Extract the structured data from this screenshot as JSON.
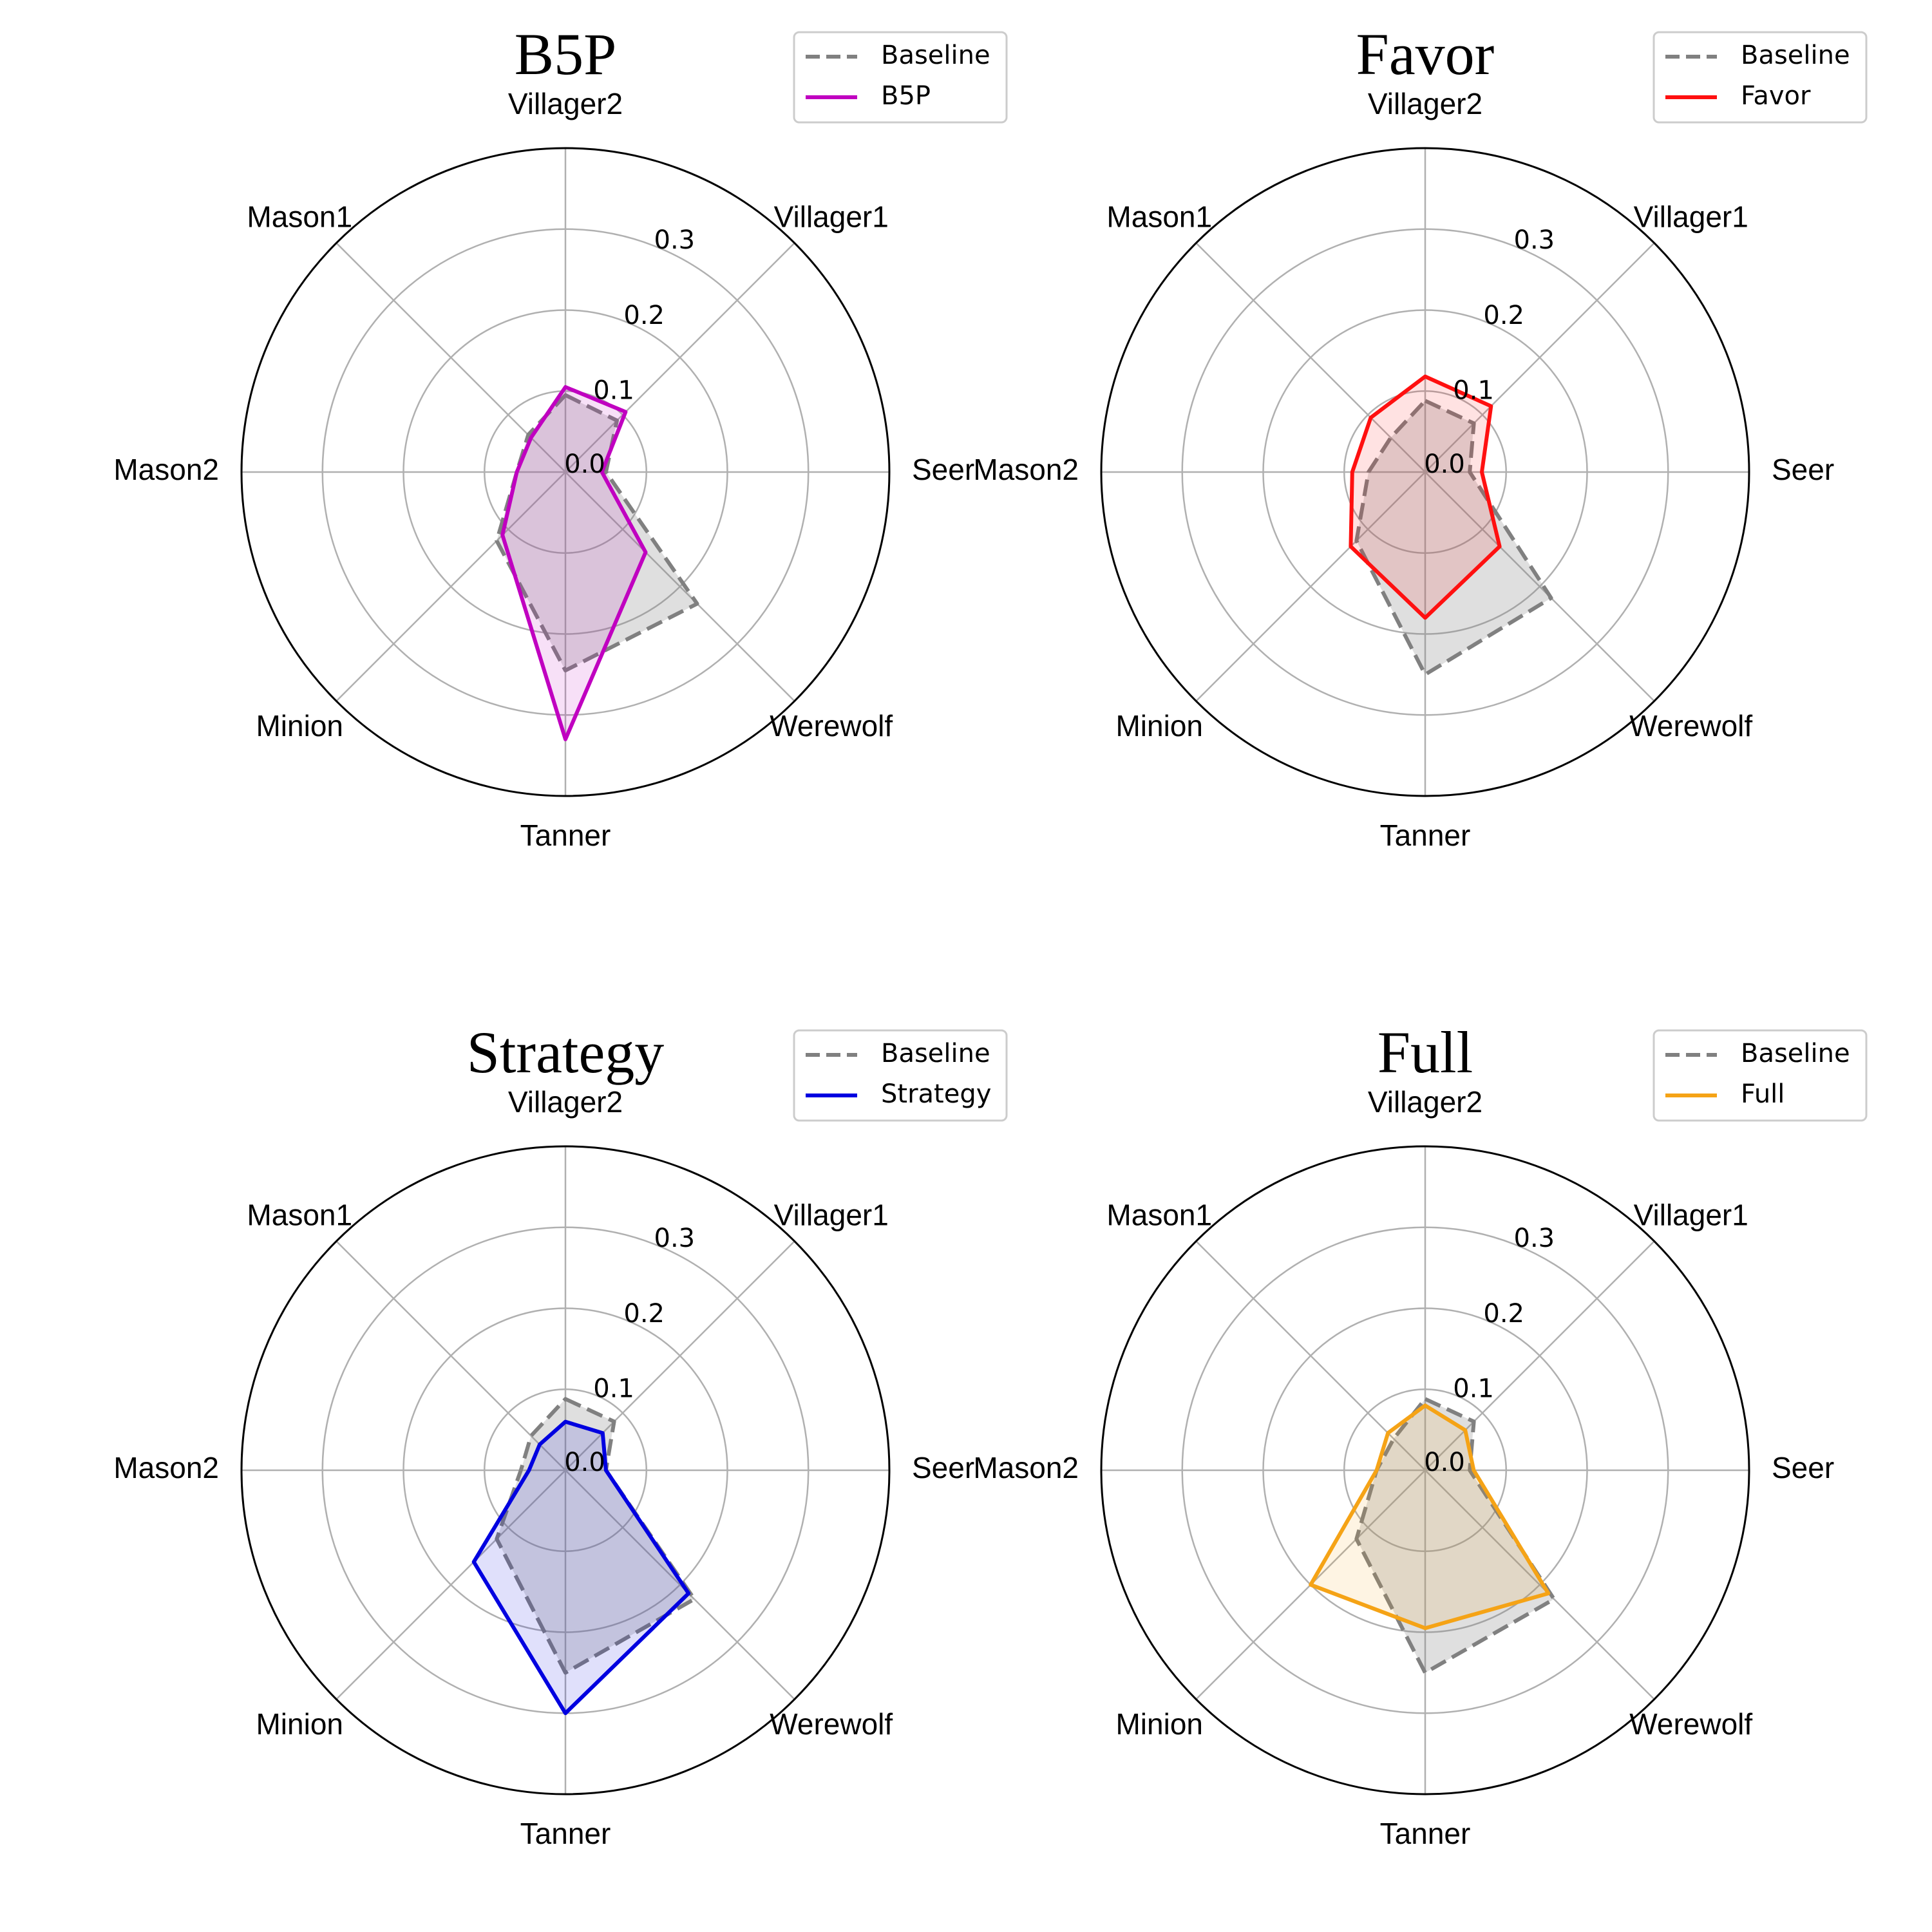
{
  "chart_data": [
    {
      "type": "radar",
      "title": "B5P",
      "axes": [
        "Villager2",
        "Villager1",
        "Seer",
        "Werewolf",
        "Tanner",
        "Minion",
        "Mason2",
        "Mason1"
      ],
      "ticks": [
        0.0,
        0.1,
        0.2,
        0.3
      ],
      "tick_labels": [
        "0.0",
        "0.1",
        "0.2",
        "0.3"
      ],
      "rlim": [
        0.0,
        0.4
      ],
      "grid": true,
      "legend_placement": "top-right",
      "series": [
        {
          "name": "Baseline",
          "values": [
            0.095,
            0.09,
            0.05,
            0.23,
            0.245,
            0.12,
            0.06,
            0.065
          ],
          "color": "#808080",
          "style": "dashed"
        },
        {
          "name": "B5P",
          "values": [
            0.105,
            0.105,
            0.045,
            0.14,
            0.33,
            0.11,
            0.06,
            0.06
          ],
          "color": "#c000c0",
          "style": "solid"
        }
      ]
    },
    {
      "type": "radar",
      "title": "Favor",
      "axes": [
        "Villager2",
        "Villager1",
        "Seer",
        "Werewolf",
        "Tanner",
        "Minion",
        "Mason2",
        "Mason1"
      ],
      "ticks": [
        0.0,
        0.1,
        0.2,
        0.3
      ],
      "tick_labels": [
        "0.0",
        "0.1",
        "0.2",
        "0.3"
      ],
      "rlim": [
        0.0,
        0.4
      ],
      "grid": true,
      "legend_placement": "top-right",
      "series": [
        {
          "name": "Baseline",
          "values": [
            0.088,
            0.085,
            0.055,
            0.22,
            0.25,
            0.12,
            0.07,
            0.06
          ],
          "color": "#808080",
          "style": "dashed"
        },
        {
          "name": "Favor",
          "values": [
            0.118,
            0.115,
            0.07,
            0.13,
            0.18,
            0.13,
            0.09,
            0.095
          ],
          "color": "#ff1010",
          "style": "solid"
        }
      ]
    },
    {
      "type": "radar",
      "title": "Strategy",
      "axes": [
        "Villager2",
        "Villager1",
        "Seer",
        "Werewolf",
        "Tanner",
        "Minion",
        "Mason2",
        "Mason1"
      ],
      "ticks": [
        0.0,
        0.1,
        0.2,
        0.3
      ],
      "tick_labels": [
        "0.0",
        "0.1",
        "0.2",
        "0.3"
      ],
      "rlim": [
        0.0,
        0.4
      ],
      "grid": true,
      "legend_placement": "top-right",
      "series": [
        {
          "name": "Baseline",
          "values": [
            0.088,
            0.085,
            0.05,
            0.225,
            0.25,
            0.12,
            0.055,
            0.06
          ],
          "color": "#808080",
          "style": "dashed"
        },
        {
          "name": "Strategy",
          "values": [
            0.06,
            0.065,
            0.05,
            0.215,
            0.3,
            0.16,
            0.045,
            0.045
          ],
          "color": "#0000e0",
          "style": "solid"
        }
      ]
    },
    {
      "type": "radar",
      "title": "Full",
      "axes": [
        "Villager2",
        "Villager1",
        "Seer",
        "Werewolf",
        "Tanner",
        "Minion",
        "Mason2",
        "Mason1"
      ],
      "ticks": [
        0.0,
        0.1,
        0.2,
        0.3
      ],
      "tick_labels": [
        "0.0",
        "0.1",
        "0.2",
        "0.3"
      ],
      "rlim": [
        0.0,
        0.4
      ],
      "grid": true,
      "legend_placement": "top-right",
      "series": [
        {
          "name": "Baseline",
          "values": [
            0.088,
            0.085,
            0.055,
            0.225,
            0.25,
            0.12,
            0.06,
            0.055
          ],
          "color": "#808080",
          "style": "dashed"
        },
        {
          "name": "Full",
          "values": [
            0.08,
            0.07,
            0.06,
            0.215,
            0.195,
            0.2,
            0.06,
            0.065
          ],
          "color": "#f5a316",
          "style": "solid"
        }
      ]
    }
  ]
}
